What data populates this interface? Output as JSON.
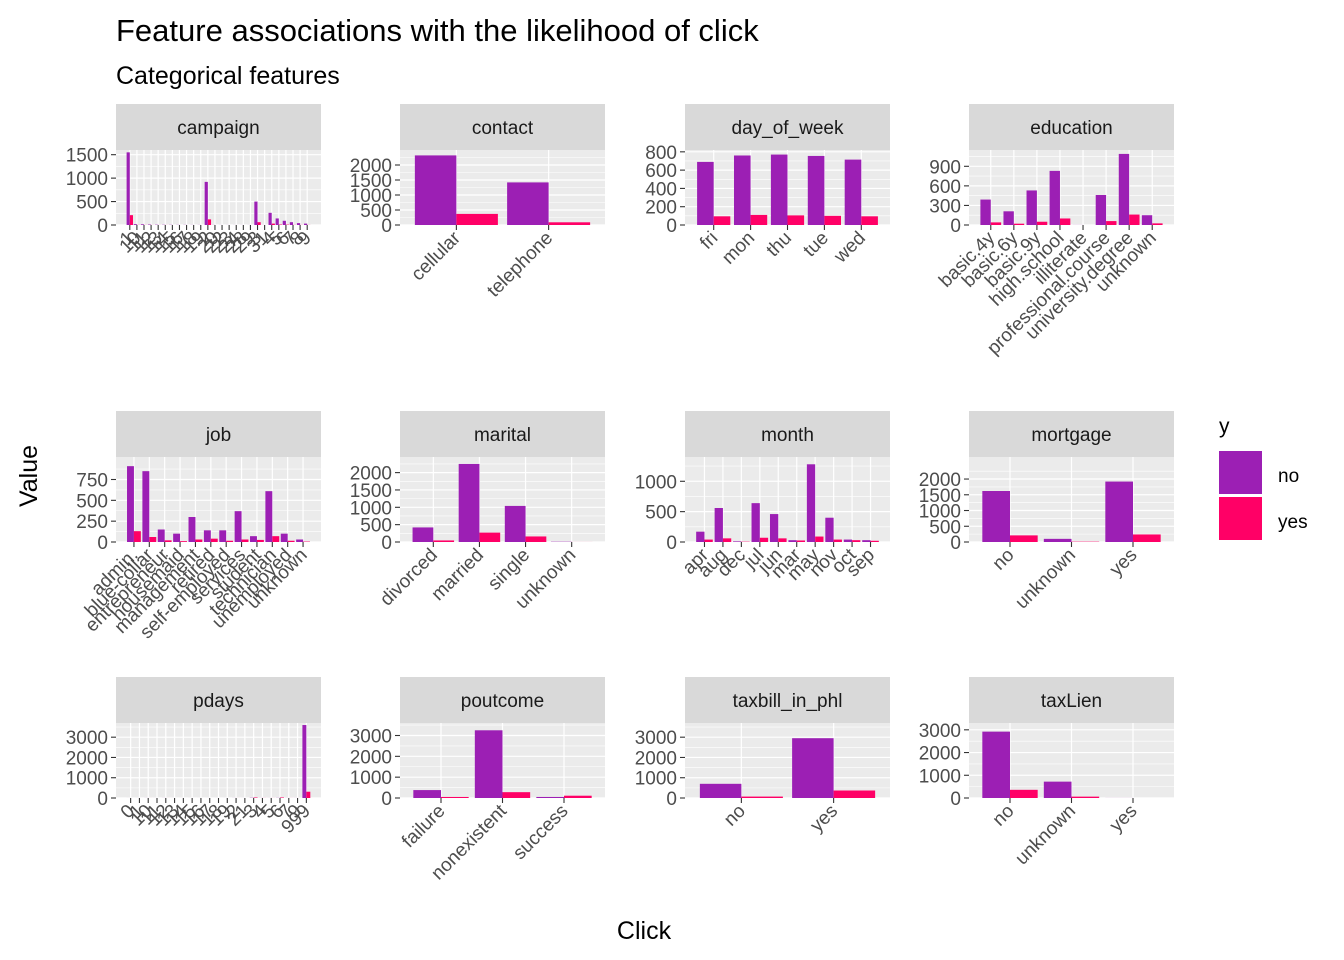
{
  "title": "Feature associations with the likelihood of click",
  "subtitle": "Categorical features",
  "xlabel": "Click",
  "ylabel": "Value",
  "legend": {
    "title": "y",
    "position": "right",
    "items": [
      {
        "label": "no",
        "color": "#9c1fb4"
      },
      {
        "label": "yes",
        "color": "#ff0066"
      }
    ]
  },
  "colors": {
    "no": "#9c1fb4",
    "yes": "#ff0066",
    "panel_bg": "#ebebeb",
    "strip_bg": "#d9d9d9",
    "grid": "#ffffff"
  },
  "chart_data": [
    {
      "type": "bar",
      "facet": "campaign",
      "ylim": [
        0,
        1600
      ],
      "yticks": [
        0,
        500,
        1000,
        1500
      ],
      "categories": [
        "1",
        "10",
        "11",
        "12",
        "13",
        "14",
        "15",
        "16",
        "17",
        "18",
        "19",
        "2",
        "20",
        "22",
        "23",
        "24",
        "28",
        "29",
        "3",
        "31",
        "4",
        "5",
        "6",
        "7",
        "8",
        "9"
      ],
      "tick_labels": [
        "1",
        "10",
        "11",
        "12",
        "13",
        "14",
        "15",
        "16",
        "17",
        "18",
        "19",
        "2",
        "20",
        "22",
        "23",
        "24",
        "28",
        "29",
        "3",
        "31",
        "4",
        "5",
        "6",
        "7",
        "8",
        "9"
      ],
      "series": [
        {
          "name": "no",
          "values": [
            1550,
            18,
            15,
            10,
            6,
            5,
            4,
            3,
            3,
            2,
            2,
            920,
            2,
            1,
            1,
            1,
            1,
            1,
            500,
            1,
            260,
            140,
            90,
            60,
            40,
            30
          ]
        },
        {
          "name": "yes",
          "values": [
            210,
            3,
            2,
            1,
            1,
            1,
            0,
            0,
            0,
            0,
            0,
            120,
            0,
            0,
            0,
            0,
            0,
            0,
            60,
            0,
            30,
            10,
            8,
            3,
            2,
            2
          ]
        }
      ]
    },
    {
      "type": "bar",
      "facet": "contact",
      "ylim": [
        0,
        2500
      ],
      "yticks": [
        0,
        500,
        1000,
        1500,
        2000
      ],
      "categories": [
        "cellular",
        "telephone"
      ],
      "tick_labels": [
        "cellular",
        "telephone"
      ],
      "series": [
        {
          "name": "no",
          "values": [
            2320,
            1420
          ]
        },
        {
          "name": "yes",
          "values": [
            370,
            90
          ]
        }
      ]
    },
    {
      "type": "bar",
      "facet": "day_of_week",
      "ylim": [
        0,
        820
      ],
      "yticks": [
        0,
        200,
        400,
        600,
        800
      ],
      "categories": [
        "fri",
        "mon",
        "thu",
        "tue",
        "wed"
      ],
      "tick_labels": [
        "fri",
        "mon",
        "thu",
        "tue",
        "wed"
      ],
      "series": [
        {
          "name": "no",
          "values": [
            690,
            760,
            770,
            755,
            715
          ]
        },
        {
          "name": "yes",
          "values": [
            95,
            110,
            105,
            100,
            95
          ]
        }
      ]
    },
    {
      "type": "bar",
      "facet": "education",
      "ylim": [
        0,
        1150
      ],
      "yticks": [
        0,
        300,
        600,
        900
      ],
      "categories": [
        "basic.4y",
        "basic.6y",
        "basic.9y",
        "high.school",
        "illiterate",
        "professional.course",
        "university.degree",
        "unknown"
      ],
      "tick_labels": [
        "basic.4y",
        "basic.6y",
        "basic.9y",
        "high.school",
        "illiterate",
        "professional.course",
        "university.degree",
        "unknown"
      ],
      "series": [
        {
          "name": "no",
          "values": [
            390,
            210,
            530,
            830,
            1,
            460,
            1090,
            150
          ]
        },
        {
          "name": "yes",
          "values": [
            40,
            20,
            50,
            100,
            0,
            60,
            160,
            25
          ]
        }
      ]
    },
    {
      "type": "bar",
      "facet": "job",
      "ylim": [
        0,
        1020
      ],
      "yticks": [
        0,
        250,
        500,
        750
      ],
      "categories": [
        "admin.",
        "blue-collar",
        "entrepreneur",
        "housemaid",
        "management",
        "retired",
        "self-employed",
        "services",
        "student",
        "technician",
        "unemployed",
        "unknown"
      ],
      "tick_labels": [
        "admin.",
        "blue-collar",
        "entrepreneur",
        "housemaid",
        "management",
        "retired",
        "self-employed",
        "services",
        "student",
        "technician",
        "unemployed",
        "unknown"
      ],
      "series": [
        {
          "name": "no",
          "values": [
            910,
            850,
            150,
            100,
            300,
            140,
            140,
            370,
            70,
            610,
            100,
            30
          ]
        },
        {
          "name": "yes",
          "values": [
            130,
            60,
            20,
            10,
            30,
            40,
            15,
            30,
            25,
            70,
            15,
            5
          ]
        }
      ]
    },
    {
      "type": "bar",
      "facet": "marital",
      "ylim": [
        0,
        2450
      ],
      "yticks": [
        0,
        500,
        1000,
        1500,
        2000
      ],
      "categories": [
        "divorced",
        "married",
        "single",
        "unknown"
      ],
      "tick_labels": [
        "divorced",
        "married",
        "single",
        "unknown"
      ],
      "series": [
        {
          "name": "no",
          "values": [
            420,
            2250,
            1040,
            8
          ]
        },
        {
          "name": "yes",
          "values": [
            45,
            270,
            160,
            1
          ]
        }
      ]
    },
    {
      "type": "bar",
      "facet": "month",
      "ylim": [
        0,
        1400
      ],
      "yticks": [
        0,
        500,
        1000
      ],
      "categories": [
        "apr",
        "aug",
        "dec",
        "jul",
        "jun",
        "mar",
        "may",
        "nov",
        "oct",
        "sep"
      ],
      "tick_labels": [
        "apr",
        "aug",
        "dec",
        "jul",
        "jun",
        "mar",
        "may",
        "nov",
        "oct",
        "sep"
      ],
      "series": [
        {
          "name": "no",
          "values": [
            170,
            560,
            10,
            640,
            460,
            30,
            1280,
            400,
            40,
            30
          ]
        },
        {
          "name": "yes",
          "values": [
            40,
            60,
            5,
            70,
            60,
            25,
            90,
            40,
            30,
            20
          ]
        }
      ]
    },
    {
      "type": "bar",
      "facet": "mortgage",
      "ylim": [
        0,
        2700
      ],
      "yticks": [
        0,
        500,
        1000,
        1500,
        2000
      ],
      "categories": [
        "no",
        "unknown",
        "yes"
      ],
      "tick_labels": [
        "no",
        "unknown",
        "yes"
      ],
      "series": [
        {
          "name": "no",
          "values": [
            1620,
            100,
            1920
          ]
        },
        {
          "name": "yes",
          "values": [
            210,
            10,
            240
          ]
        }
      ]
    },
    {
      "type": "bar",
      "facet": "pdays",
      "ylim": [
        0,
        3700
      ],
      "yticks": [
        0,
        1000,
        2000,
        3000
      ],
      "categories": [
        "0",
        "1",
        "10",
        "11",
        "12",
        "13",
        "14",
        "15",
        "16",
        "17",
        "18",
        "19",
        "2",
        "21",
        "3",
        "4",
        "5",
        "6",
        "7",
        "9",
        "999"
      ],
      "tick_labels": [
        "0",
        "1",
        "10",
        "11",
        "12",
        "13",
        "14",
        "15",
        "16",
        "17",
        "18",
        "19",
        "2",
        "21",
        "3",
        "4",
        "5",
        "6",
        "7",
        "9",
        "999"
      ],
      "series": [
        {
          "name": "no",
          "values": [
            1,
            1,
            2,
            1,
            2,
            1,
            1,
            1,
            1,
            1,
            1,
            1,
            2,
            1,
            10,
            3,
            2,
            6,
            2,
            2,
            3600
          ]
        },
        {
          "name": "yes",
          "values": [
            0,
            0,
            1,
            0,
            1,
            0,
            0,
            0,
            0,
            0,
            0,
            0,
            1,
            0,
            25,
            3,
            2,
            25,
            2,
            1,
            310
          ]
        }
      ]
    },
    {
      "type": "bar",
      "facet": "poutcome",
      "ylim": [
        0,
        3600
      ],
      "yticks": [
        0,
        1000,
        2000,
        3000
      ],
      "categories": [
        "failure",
        "nonexistent",
        "success"
      ],
      "tick_labels": [
        "failure",
        "nonexistent",
        "success"
      ],
      "series": [
        {
          "name": "no",
          "values": [
            380,
            3250,
            50
          ]
        },
        {
          "name": "yes",
          "values": [
            50,
            280,
            110
          ]
        }
      ]
    },
    {
      "type": "bar",
      "facet": "taxbill_in_phl",
      "ylim": [
        0,
        3700
      ],
      "yticks": [
        0,
        1000,
        2000,
        3000
      ],
      "categories": [
        "no",
        "yes"
      ],
      "tick_labels": [
        "no",
        "yes"
      ],
      "series": [
        {
          "name": "no",
          "values": [
            700,
            2950
          ]
        },
        {
          "name": "yes",
          "values": [
            70,
            370
          ]
        }
      ]
    },
    {
      "type": "bar",
      "facet": "taxLien",
      "ylim": [
        0,
        3300
      ],
      "yticks": [
        0,
        1000,
        2000,
        3000
      ],
      "categories": [
        "no",
        "unknown",
        "yes"
      ],
      "tick_labels": [
        "no",
        "unknown",
        "yes"
      ],
      "series": [
        {
          "name": "no",
          "values": [
            2920,
            720,
            2
          ]
        },
        {
          "name": "yes",
          "values": [
            360,
            60,
            0
          ]
        }
      ]
    }
  ]
}
